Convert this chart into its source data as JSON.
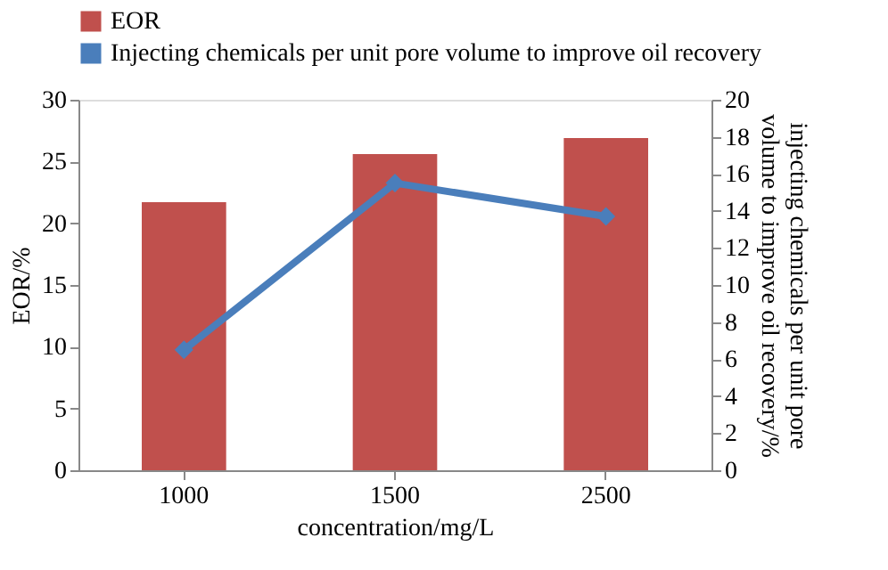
{
  "chart_data": {
    "type": "bar",
    "categories": [
      "1000",
      "1500",
      "2500"
    ],
    "xlabel": "concentration/mg/L",
    "ylabel": "EOR/%",
    "y2label": "injecting chemicals per unit pore volume to improve oil recovery/%",
    "series": [
      {
        "name": "EOR",
        "color": "#c0504d",
        "values": [
          21.7,
          25.6,
          26.9
        ]
      },
      {
        "name": "Injecting chemicals per unit pore volume to improve oil recovery",
        "type": "line",
        "axis": "y2",
        "color": "#4a7ebb",
        "marker": "diamond",
        "values": [
          6.5,
          15.5,
          13.7
        ]
      }
    ],
    "ylim": [
      0,
      30
    ],
    "yticks": [
      0,
      5,
      10,
      15,
      20,
      25,
      30
    ],
    "y2lim": [
      0,
      20
    ],
    "y2ticks": [
      0,
      2,
      4,
      6,
      8,
      10,
      12,
      14,
      16,
      18,
      20
    ],
    "grid": false,
    "legend": "top"
  }
}
